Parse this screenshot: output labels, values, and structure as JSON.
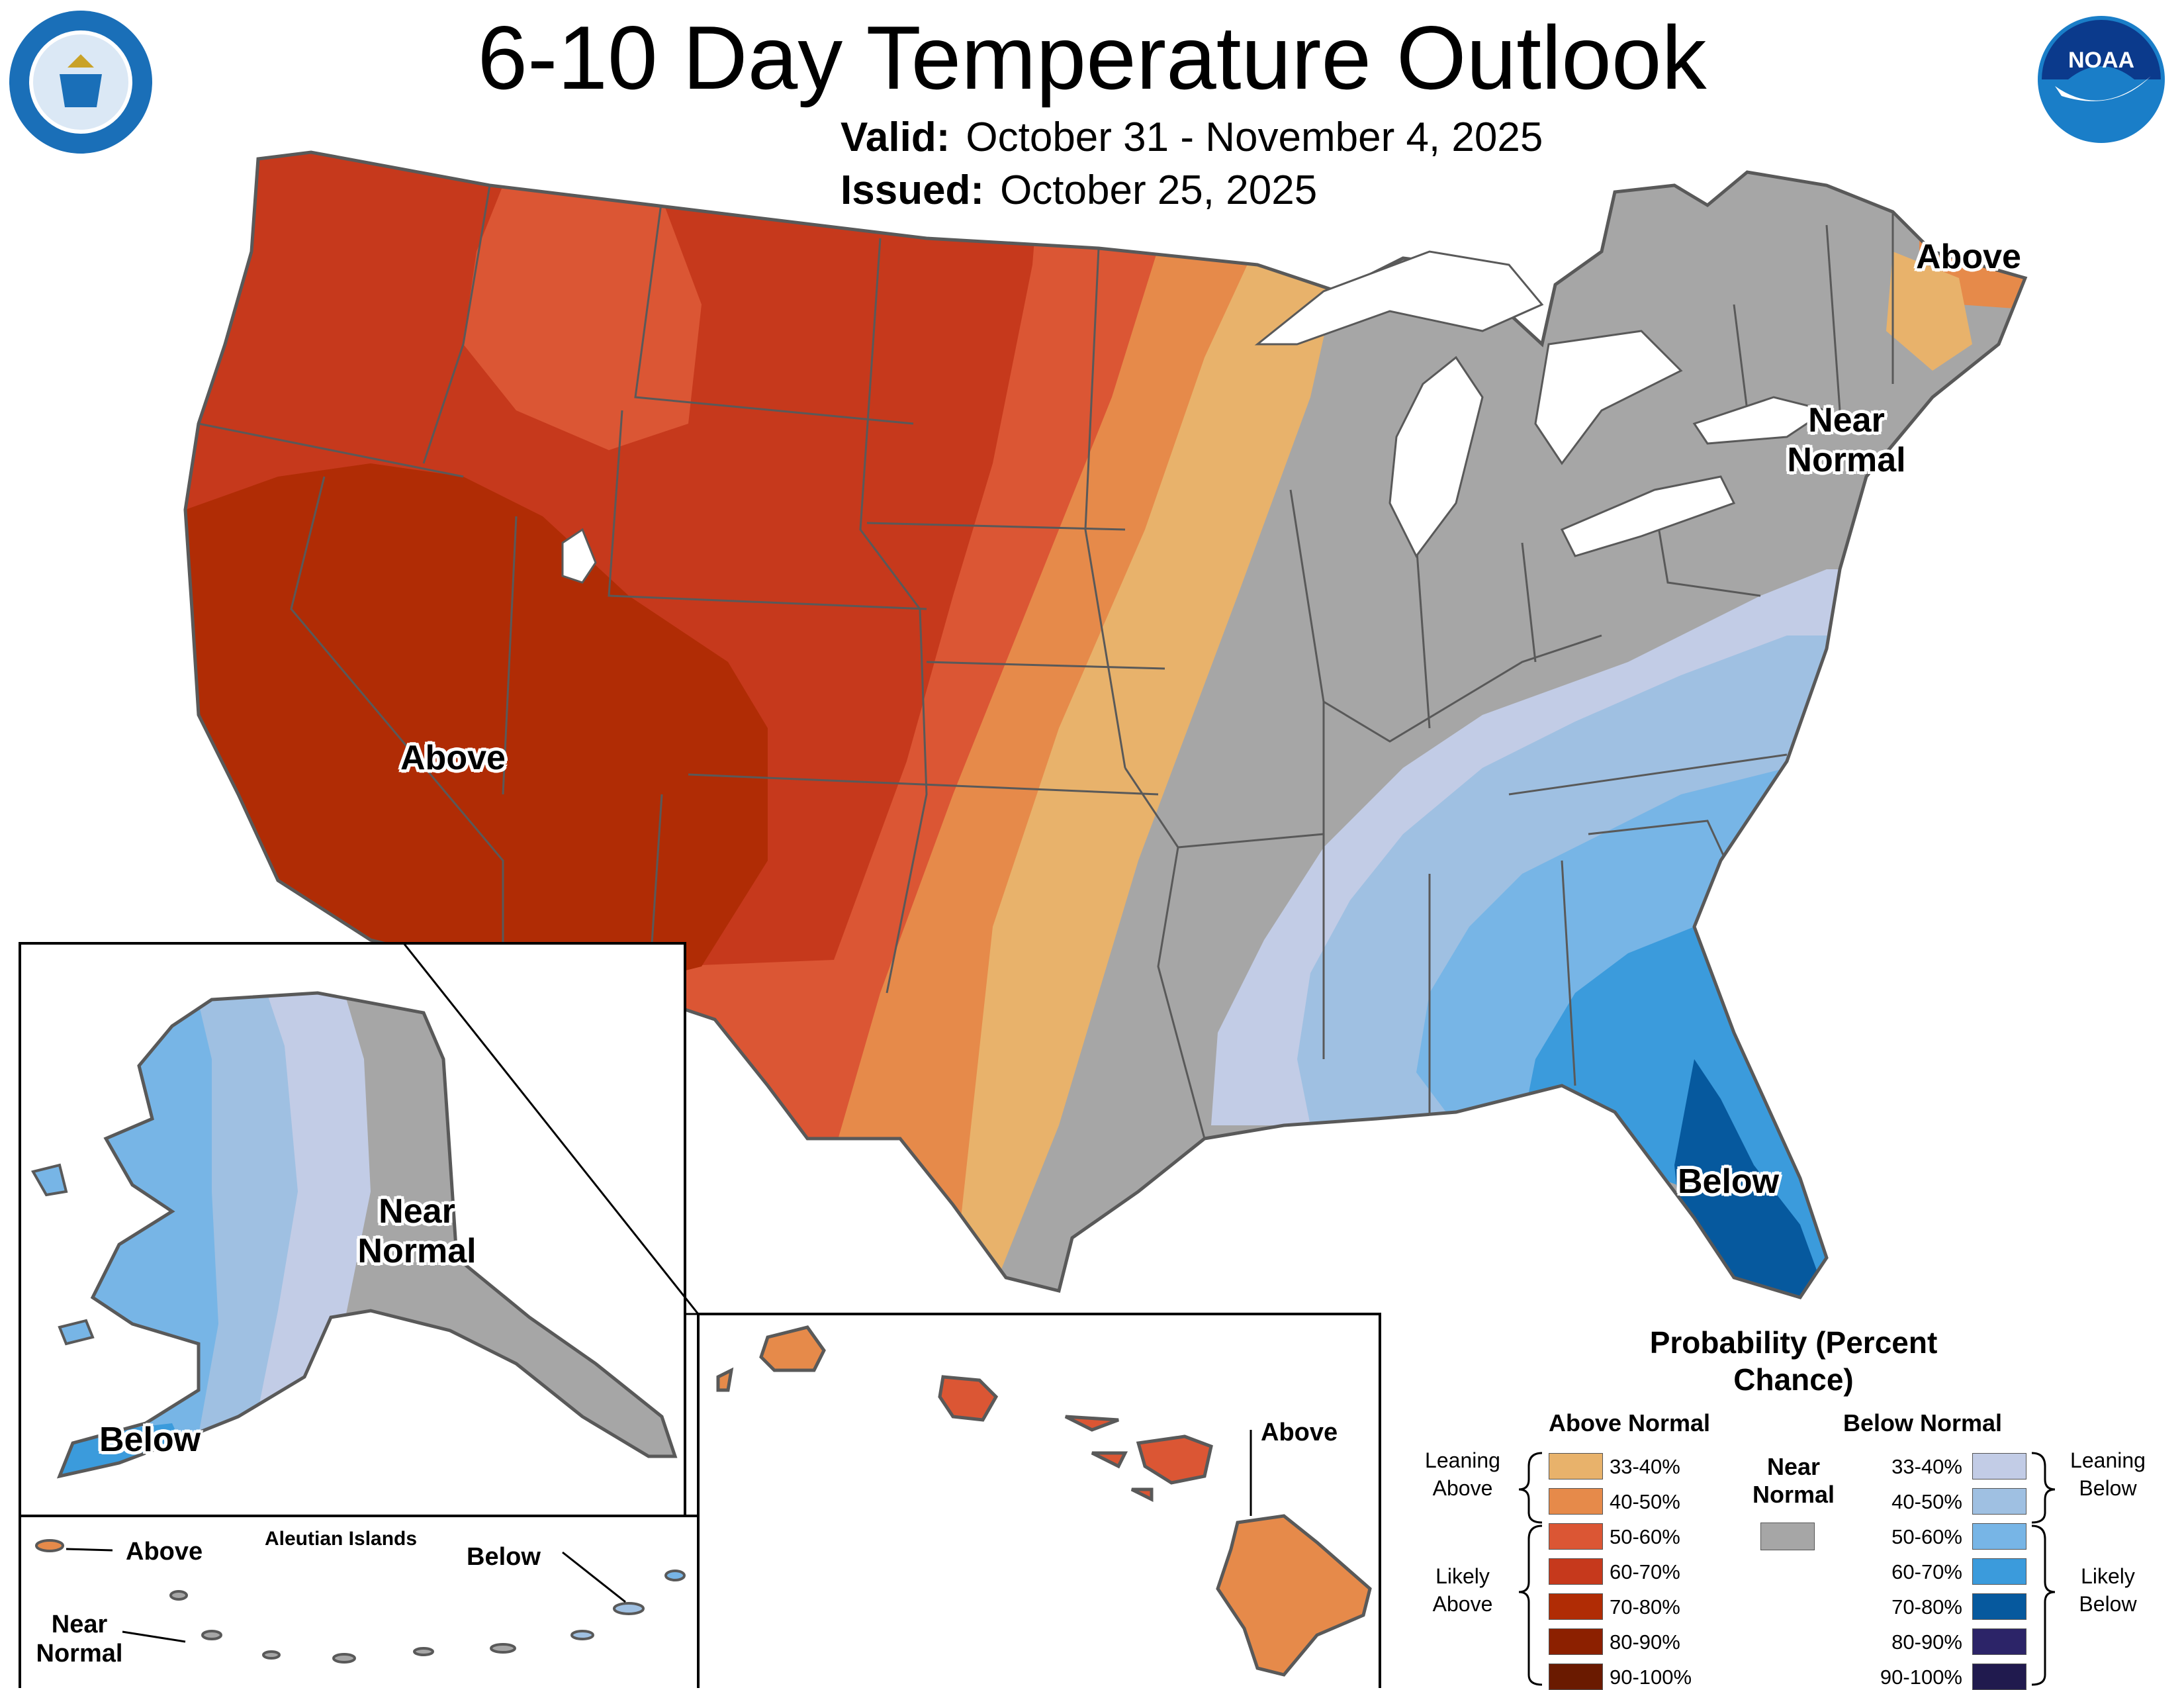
{
  "title": "6-10 Day Temperature Outlook",
  "valid": {
    "label": "Valid:",
    "value": "October 31 - November 4, 2025"
  },
  "issued": {
    "label": "Issued:",
    "value": "October 25, 2025"
  },
  "colors": {
    "above_33_40": "#e8b26b",
    "above_40_50": "#e68a4a",
    "above_50_60": "#db5634",
    "above_60_70": "#c6391c",
    "above_70_80": "#b02c05",
    "above_80_90": "#8c2000",
    "above_90_100": "#6a1a00",
    "near_normal": "#a6a6a6",
    "below_33_40": "#c2cce6",
    "below_40_50": "#9fc0e2",
    "below_50_60": "#77b5e6",
    "below_60_70": "#3b9bdc",
    "below_70_80": "#06599e",
    "below_80_90": "#2c2468",
    "below_90_100": "#201a4e",
    "boundary": "#595959"
  },
  "map_labels": {
    "west_above": "Above",
    "northeast_above": "Above",
    "northeast_near": "Near Normal",
    "florida_below": "Below",
    "alaska_near": "Near Normal",
    "alaska_below": "Below",
    "aleutian_title": "Aleutian Islands",
    "aleutian_above": "Above",
    "aleutian_below": "Below",
    "aleutian_near": "Near Normal",
    "hawaii_above": "Above"
  },
  "logos": {
    "left": "department-of-commerce-seal",
    "right": "noaa-logo"
  },
  "legend": {
    "title": "Probability (Percent Chance)",
    "above_header": "Above Normal",
    "below_header": "Below Normal",
    "near_header": "Near Normal",
    "leaning_above": "Leaning Above",
    "likely_above": "Likely Above",
    "leaning_below": "Leaning Below",
    "likely_below": "Likely Below",
    "ranges": [
      "33-40%",
      "40-50%",
      "50-60%",
      "60-70%",
      "70-80%",
      "80-90%",
      "90-100%"
    ]
  }
}
